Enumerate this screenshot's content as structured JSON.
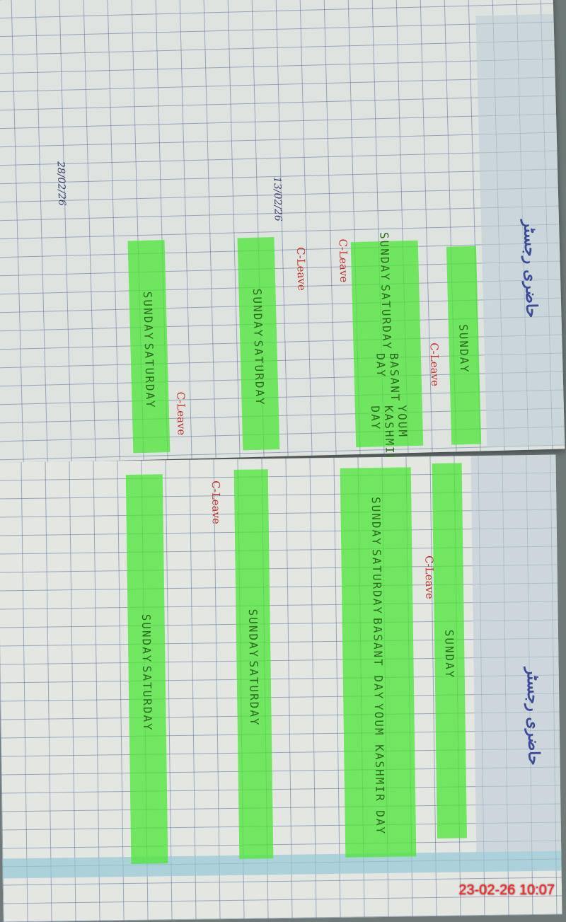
{
  "register": {
    "top_page": {
      "title": "حاضری رجسٹر",
      "bands": [
        {
          "lines": [
            "SUNDAY"
          ]
        },
        {
          "lines": [
            "YOUM KASHMIR DAY",
            "BASANT DAY",
            "SATURDAY",
            "SUNDAY"
          ]
        },
        {
          "lines": [
            "SATURDAY",
            "SUNDAY"
          ]
        },
        {
          "lines": [
            "SATURDAY",
            "SUNDAY"
          ]
        }
      ],
      "leave_marks": [
        "C-Leave",
        "C-Leave",
        "C-Leave",
        "C-Leave"
      ],
      "signature_dates": [
        "13/02/26",
        "28/02/26"
      ]
    },
    "bottom_page": {
      "title": "حاضری رجسٹر",
      "bands": [
        {
          "lines": [
            "SUNDAY"
          ]
        },
        {
          "lines": [
            "YOUM KASHMIR DAY",
            "BASANT DAY",
            "SATURDAY",
            "SUNDAY"
          ]
        },
        {
          "lines": [
            "SATURDAY",
            "SUNDAY"
          ]
        },
        {
          "lines": [
            "SATURDAY",
            "SUNDAY"
          ]
        }
      ],
      "leave_marks": [
        "C-Leave",
        "C-Leave"
      ]
    }
  },
  "camera_timestamp": "23-02-26  10:07",
  "colors": {
    "highlight": "#50e63c",
    "ink_leave": "#c0322a",
    "timestamp": "#ff2a2a"
  }
}
